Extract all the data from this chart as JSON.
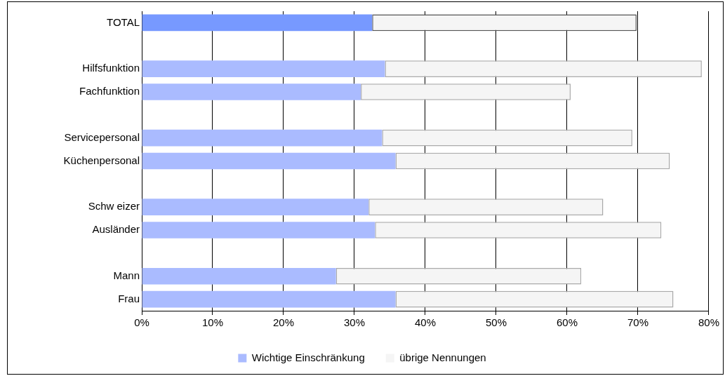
{
  "chart_data": {
    "type": "bar",
    "orientation": "horizontal",
    "stacked": true,
    "grid": "x",
    "legend": "bottom",
    "categories": [
      "TOTAL",
      null,
      "Hilfsfunktion",
      "Fachfunktion",
      null,
      "Servicepersonal",
      "Küchenpersonal",
      null,
      "Schw eizer",
      "Ausländer",
      null,
      "Mann",
      "Frau"
    ],
    "series": [
      {
        "name": "Wichtige Einschränkung",
        "color": "#aabbff",
        "colors": [
          "#7799ff",
          null,
          "#aabbff",
          "#aabbff",
          null,
          "#aabbff",
          "#aabbff",
          null,
          "#aabbff",
          "#aabbff",
          null,
          "#aabbff",
          "#aabbff"
        ],
        "values": [
          32.5,
          null,
          34.3,
          30.9,
          null,
          33.9,
          35.8,
          null,
          32.0,
          32.9,
          null,
          27.4,
          35.8
        ]
      },
      {
        "name": "übrige Nennungen",
        "color": "#f5f5f5",
        "values": [
          37.3,
          null,
          44.7,
          29.6,
          null,
          35.3,
          38.7,
          null,
          33.1,
          40.4,
          null,
          34.6,
          39.2
        ]
      }
    ],
    "xlim": [
      0,
      80
    ],
    "xticks": [
      {
        "value": 0,
        "label": "0%"
      },
      {
        "value": 10,
        "label": "10%"
      },
      {
        "value": 20,
        "label": "20%"
      },
      {
        "value": 30,
        "label": "30%"
      },
      {
        "value": 40,
        "label": "40%"
      },
      {
        "value": 50,
        "label": "50%"
      },
      {
        "value": 60,
        "label": "60%"
      },
      {
        "value": 70,
        "label": "70%"
      },
      {
        "value": 80,
        "label": "80%"
      }
    ]
  }
}
